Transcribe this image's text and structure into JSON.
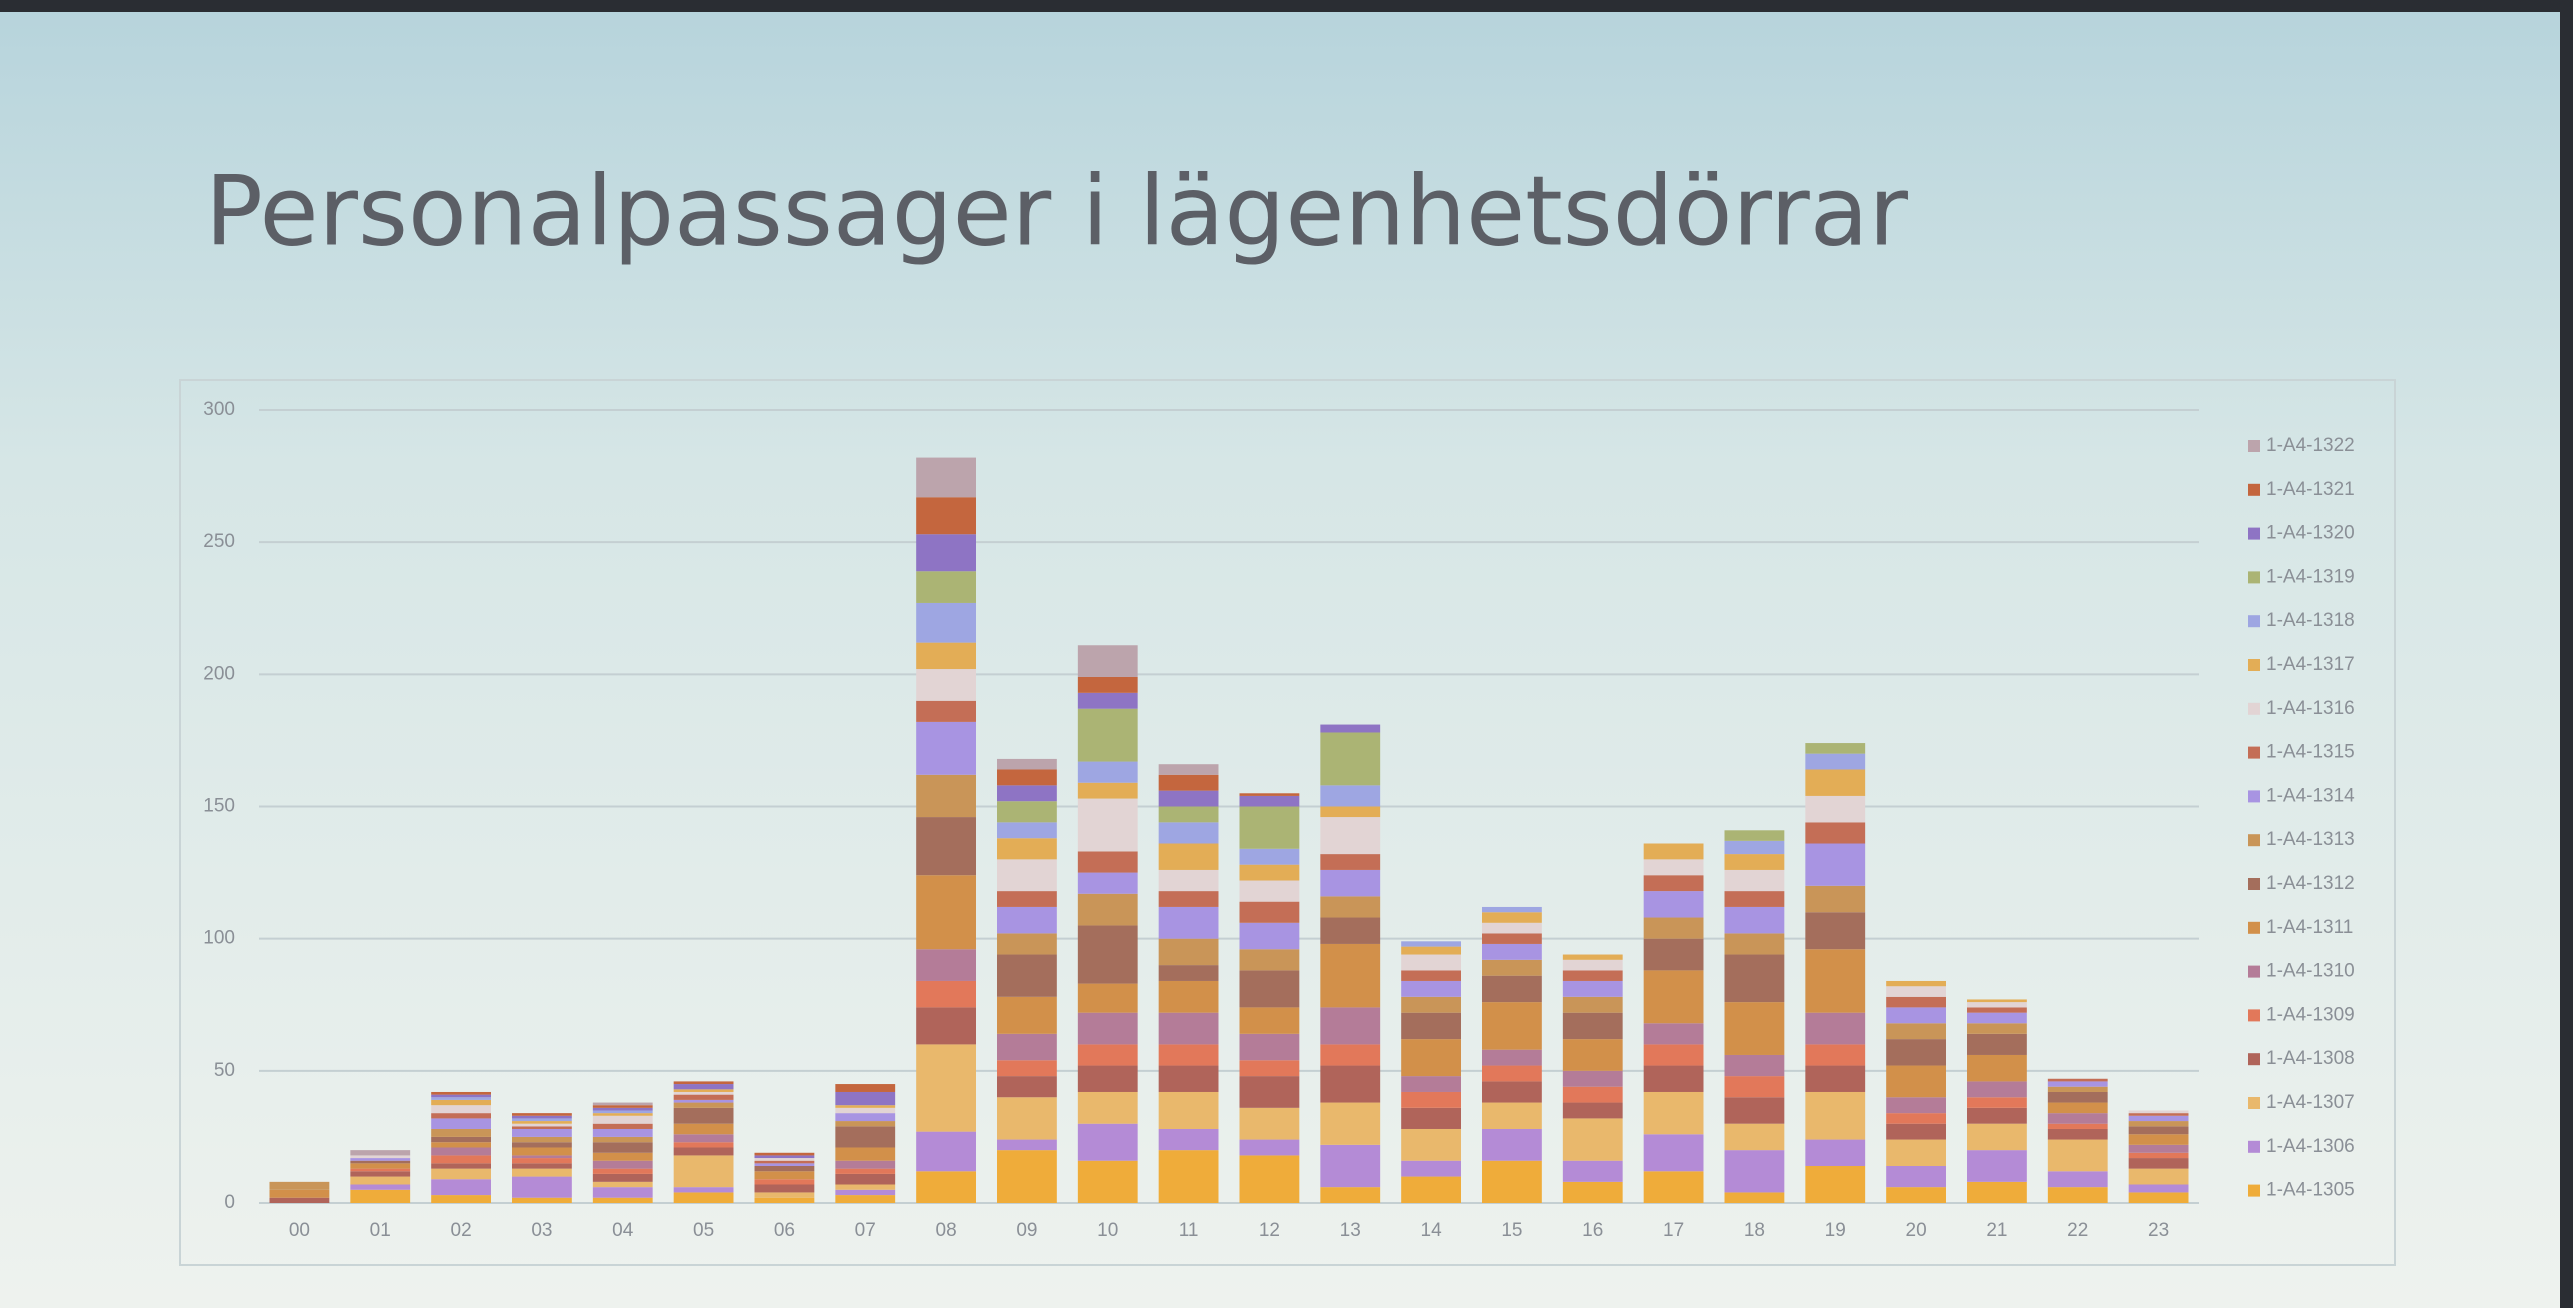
{
  "chart_data": {
    "type": "stacked-bar",
    "title": "Personalpassager i lägenhetsdörrar",
    "categories": [
      "00",
      "01",
      "02",
      "03",
      "04",
      "05",
      "06",
      "07",
      "08",
      "09",
      "10",
      "11",
      "12",
      "13",
      "14",
      "15",
      "16",
      "17",
      "18",
      "19",
      "20",
      "21",
      "22",
      "23"
    ],
    "ylim": [
      0,
      300
    ],
    "yticks": [
      0,
      50,
      100,
      150,
      200,
      250,
      300
    ],
    "grid": true,
    "legend": "right",
    "series": [
      {
        "name": "1-A4-1305",
        "color": "#efac3a",
        "values": [
          0,
          5,
          3,
          2,
          2,
          4,
          2,
          3,
          12,
          20,
          16,
          20,
          18,
          6,
          10,
          16,
          8,
          12,
          4,
          14,
          6,
          8,
          6,
          4
        ]
      },
      {
        "name": "1-A4-1306",
        "color": "#b48bd6",
        "values": [
          0,
          2,
          6,
          8,
          4,
          2,
          0,
          2,
          15,
          4,
          14,
          8,
          6,
          16,
          6,
          12,
          8,
          14,
          16,
          10,
          8,
          12,
          6,
          3
        ]
      },
      {
        "name": "1-A4-1307",
        "color": "#e9b86c",
        "values": [
          0,
          3,
          4,
          3,
          2,
          12,
          2,
          2,
          33,
          16,
          12,
          14,
          12,
          16,
          12,
          10,
          16,
          16,
          10,
          18,
          10,
          10,
          12,
          6
        ]
      },
      {
        "name": "1-A4-1308",
        "color": "#b0645a",
        "values": [
          2,
          2,
          2,
          2,
          3,
          3,
          3,
          4,
          14,
          8,
          10,
          10,
          12,
          14,
          8,
          8,
          6,
          10,
          10,
          10,
          6,
          6,
          4,
          4
        ]
      },
      {
        "name": "1-A4-1309",
        "color": "#e2785a",
        "values": [
          0,
          1,
          3,
          2,
          2,
          2,
          2,
          2,
          10,
          6,
          8,
          8,
          6,
          8,
          6,
          6,
          6,
          8,
          8,
          8,
          4,
          4,
          2,
          2
        ]
      },
      {
        "name": "1-A4-1310",
        "color": "#b47c98",
        "values": [
          0,
          0,
          3,
          1,
          3,
          3,
          0,
          3,
          12,
          10,
          12,
          12,
          10,
          14,
          6,
          6,
          6,
          8,
          8,
          12,
          6,
          6,
          4,
          3
        ]
      },
      {
        "name": "1-A4-1311",
        "color": "#d2904a",
        "values": [
          3,
          2,
          2,
          3,
          3,
          4,
          3,
          5,
          28,
          14,
          11,
          12,
          10,
          24,
          14,
          18,
          12,
          20,
          20,
          24,
          12,
          10,
          4,
          4
        ]
      },
      {
        "name": "1-A4-1312",
        "color": "#a46e5c",
        "values": [
          0,
          1,
          2,
          2,
          4,
          6,
          2,
          8,
          22,
          16,
          22,
          6,
          14,
          10,
          10,
          10,
          10,
          12,
          18,
          14,
          10,
          8,
          4,
          3
        ]
      },
      {
        "name": "1-A4-1313",
        "color": "#c99558",
        "values": [
          3,
          0,
          3,
          2,
          2,
          2,
          0,
          2,
          16,
          8,
          12,
          10,
          8,
          8,
          6,
          6,
          6,
          8,
          8,
          10,
          6,
          4,
          2,
          2
        ]
      },
      {
        "name": "1-A4-1314",
        "color": "#a894e2",
        "values": [
          0,
          1,
          4,
          3,
          3,
          1,
          1,
          3,
          20,
          10,
          8,
          12,
          10,
          10,
          6,
          6,
          6,
          10,
          10,
          16,
          6,
          4,
          2,
          2
        ]
      },
      {
        "name": "1-A4-1315",
        "color": "#c46e56",
        "values": [
          0,
          0,
          2,
          1,
          2,
          2,
          1,
          0,
          8,
          6,
          8,
          6,
          8,
          6,
          4,
          4,
          4,
          6,
          6,
          8,
          4,
          2,
          1,
          1
        ]
      },
      {
        "name": "1-A4-1316",
        "color": "#e2d4d4",
        "values": [
          0,
          1,
          3,
          1,
          3,
          1,
          1,
          2,
          12,
          12,
          20,
          8,
          8,
          14,
          6,
          4,
          4,
          6,
          8,
          10,
          4,
          2,
          0,
          1
        ]
      },
      {
        "name": "1-A4-1317",
        "color": "#e3ad56",
        "values": [
          0,
          0,
          2,
          1,
          1,
          1,
          0,
          1,
          10,
          8,
          6,
          10,
          6,
          4,
          3,
          4,
          2,
          6,
          6,
          10,
          2,
          1,
          0,
          0
        ]
      },
      {
        "name": "1-A4-1318",
        "color": "#9ea6e2",
        "values": [
          0,
          0,
          1,
          1,
          1,
          0,
          0,
          0,
          15,
          6,
          8,
          8,
          6,
          8,
          2,
          2,
          0,
          0,
          5,
          6,
          0,
          0,
          0,
          0
        ]
      },
      {
        "name": "1-A4-1319",
        "color": "#abb474",
        "values": [
          0,
          0,
          0,
          0,
          0,
          0,
          0,
          0,
          12,
          8,
          20,
          6,
          16,
          20,
          0,
          0,
          0,
          0,
          4,
          4,
          0,
          0,
          0,
          0
        ]
      },
      {
        "name": "1-A4-1320",
        "color": "#8e74c4",
        "values": [
          0,
          0,
          1,
          1,
          1,
          2,
          1,
          5,
          14,
          6,
          6,
          6,
          4,
          3,
          0,
          0,
          0,
          0,
          0,
          0,
          0,
          0,
          0,
          0
        ]
      },
      {
        "name": "1-A4-1321",
        "color": "#c4663e",
        "values": [
          0,
          0,
          1,
          1,
          1,
          1,
          1,
          3,
          14,
          6,
          6,
          6,
          1,
          0,
          0,
          0,
          0,
          0,
          0,
          0,
          0,
          0,
          0,
          0
        ]
      },
      {
        "name": "1-A4-1322",
        "color": "#bca4ac",
        "values": [
          0,
          2,
          0,
          0,
          1,
          0,
          0,
          0,
          15,
          4,
          12,
          4,
          0,
          0,
          0,
          0,
          0,
          0,
          0,
          0,
          0,
          0,
          0,
          0
        ]
      }
    ]
  }
}
